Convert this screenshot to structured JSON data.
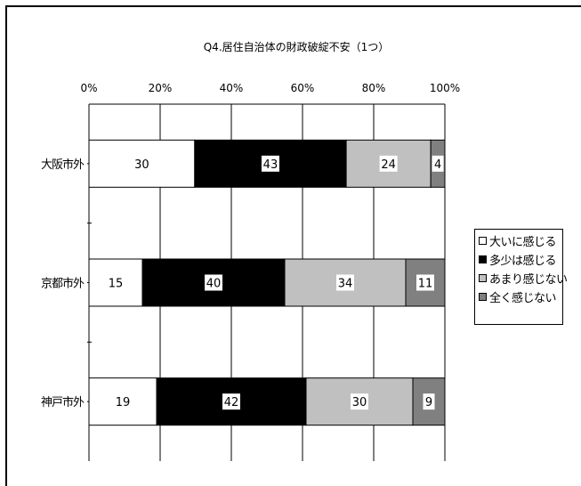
{
  "chart_data": {
    "type": "bar",
    "orientation": "horizontal",
    "stacked": "percent",
    "title": "Q4.居住自治体の財政破綻不安（1つ）",
    "categories": [
      "大阪市外",
      "京都市外",
      "神戸市外"
    ],
    "x_ticks": [
      "0%",
      "20%",
      "40%",
      "60%",
      "80%",
      "100%"
    ],
    "xlim": [
      0,
      100
    ],
    "grid": true,
    "legend_position": "right",
    "series": [
      {
        "name": "大いに感じる",
        "values": [
          30,
          15,
          19
        ],
        "color": "#ffffff"
      },
      {
        "name": "多少は感じる",
        "values": [
          43,
          40,
          42
        ],
        "color": "#000000"
      },
      {
        "name": "あまり感じない",
        "values": [
          24,
          34,
          30
        ],
        "color": "#c0c0c0"
      },
      {
        "name": "全く感じない",
        "values": [
          4,
          11,
          9
        ],
        "color": "#808080"
      }
    ]
  }
}
